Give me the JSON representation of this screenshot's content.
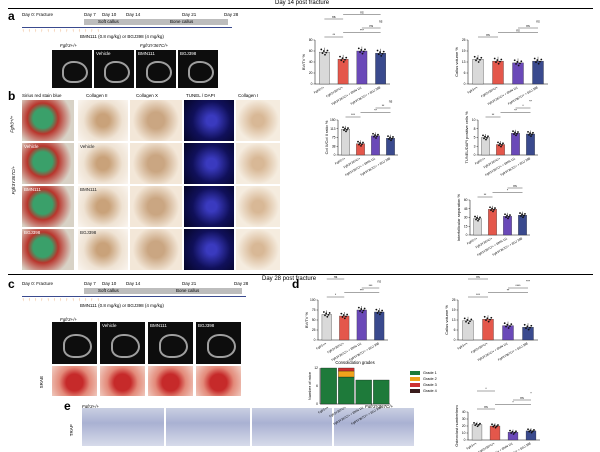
{
  "headers": {
    "d14": "Day 14 post fracture",
    "d28": "Day 28 post fracture"
  },
  "panels": [
    "a",
    "b",
    "c",
    "d",
    "e"
  ],
  "timeline14": {
    "labels": [
      "Day 0: Fracture",
      "Day 7",
      "Day 10",
      "Day 14"
    ],
    "phases": [
      "Soft callus",
      "Bone callus"
    ],
    "phase_days": [
      "Day 21",
      "Day 28"
    ],
    "drug": "BMN111 (0.8 mg/kg) or BGJ398 (4 mg/kg)"
  },
  "timeline28": {
    "labels": [
      "Day 0: Fracture",
      "Day 7",
      "Day 10",
      "Day 14"
    ],
    "phases": [
      "Soft callus",
      "Bone callus"
    ],
    "phase_days": [
      "Day 21",
      "Day 28"
    ],
    "drug": "BMN111 (0.8 mg/kg) or BGJ398 (4 mg/kg)"
  },
  "image_labels": {
    "ct14": [
      "Fgfr3+/+",
      "Vehicle",
      "BMN111",
      "BGJ398"
    ],
    "ct14_group": "Fgfr3Y367C/+",
    "ct28": [
      "Fgfr3+/+",
      "Vehicle",
      "BMN111",
      "BGJ398"
    ],
    "b_cols": [
      "Sirius red stain blue",
      "Collagen II",
      "Collagen X",
      "TUNEL / DAPI",
      "Collagen I"
    ],
    "b_rows": [
      "Fgfr3+/+",
      "Fgfr3Y367C/+"
    ],
    "b_row_tags": [
      "Vehicle",
      "BMN111",
      "BGJ398"
    ],
    "c_row2": "SRAB",
    "e_cols": [
      "Fgfr3+/+",
      "Vehicle",
      "BMN111",
      "BGJ398"
    ],
    "e_group": "Fgfr3Y367C/+",
    "e_row": "TRAP"
  },
  "groups": [
    "Fgfr3+/+",
    "Fgfr3Y367C/+",
    "Fgfr3Y367C/+ + BMN 111",
    "Fgfr3Y367C/+ + BGJ 398"
  ],
  "colors": {
    "wt": "#d9d9d9",
    "veh": "#e4574b",
    "bmn": "#6a49b8",
    "bgj": "#3a4a8e",
    "g1": "#1e7a3a",
    "g2": "#f0a31c",
    "g3": "#cc3030",
    "g4": "#3a1c1c"
  },
  "chart_data": [
    {
      "type": "bar",
      "ylabel": "BV/TV %",
      "ylim": [
        0,
        80
      ],
      "categories": [
        "Fgfr3+/+",
        "Fgfr3Y367C/+",
        "Fgfr3Y367C/+ + BMN 111",
        "Fgfr3Y367C/+ + BGJ 398"
      ],
      "values": [
        58,
        45,
        60,
        56
      ],
      "sig": [
        "**",
        "***",
        "ns",
        "ns",
        "ns",
        "ns"
      ]
    },
    {
      "type": "bar",
      "ylabel": "Callus volume %",
      "ylim": [
        0,
        25
      ],
      "categories": [
        "Fgfr3+/+",
        "Fgfr3Y367C/+",
        "Fgfr3Y367C/+ + BMN 111",
        "Fgfr3Y367C/+ + BGJ 398"
      ],
      "values": [
        14,
        13,
        12,
        13
      ],
      "sig": [
        "ns",
        "ns",
        "ns",
        "ns"
      ]
    },
    {
      "type": "bar",
      "ylabel": "Col X/Col II ratio %",
      "ylim": [
        0,
        150
      ],
      "categories": [
        "Fgfr3+/+",
        "Fgfr3Y367C/+",
        "Fgfr3Y367C/+ + BMN 111",
        "Fgfr3Y367C/+ + BGJ 398"
      ],
      "values": [
        110,
        48,
        82,
        72
      ],
      "sig": [
        "***",
        "**",
        "**",
        "ns"
      ]
    },
    {
      "type": "bar",
      "ylabel": "TUNEL/DAPI positive cells %",
      "ylim": [
        0,
        10
      ],
      "categories": [
        "Fgfr3+/+",
        "Fgfr3Y367C/+",
        "Fgfr3Y367C/+ + BMN 111",
        "Fgfr3Y367C/+ + BGJ 398"
      ],
      "values": [
        5,
        3,
        6.2,
        6
      ],
      "sig": [
        "**",
        "**",
        "*",
        "**"
      ]
    },
    {
      "type": "bar",
      "ylabel": "Interfollicular separation %",
      "ylim": [
        0,
        60
      ],
      "categories": [
        "Fgfr3+/+",
        "Fgfr3Y367C/+",
        "Fgfr3Y367C/+ + BMN 111",
        "Fgfr3Y367C/+ + BGJ 398"
      ],
      "values": [
        28,
        44,
        32,
        34
      ],
      "sig": [
        "**",
        "*",
        "ns"
      ]
    },
    {
      "type": "bar",
      "ylabel": "BV/TV %",
      "ylim": [
        0,
        100
      ],
      "categories": [
        "Fgfr3+/+",
        "Fgfr3Y367C/+",
        "Fgfr3Y367C/+ + BMN 111",
        "Fgfr3Y367C/+ + BGJ 398"
      ],
      "values": [
        64,
        60,
        75,
        70
      ],
      "sig": [
        "*",
        "***",
        "***",
        "ns",
        "ns"
      ]
    },
    {
      "type": "bar",
      "ylabel": "Callus volume %",
      "ylim": [
        0,
        25
      ],
      "categories": [
        "Fgfr3+/+",
        "Fgfr3Y367C/+",
        "Fgfr3Y367C/+ + BMN 111",
        "Fgfr3Y367C/+ + BGJ 398"
      ],
      "values": [
        12,
        13,
        9,
        8
      ],
      "sig": [
        "***",
        "**",
        "****",
        "***",
        "ns"
      ]
    },
    {
      "type": "bar",
      "title": "Consolidation grades",
      "ylabel": "Number of mice",
      "categories": [
        "Fgfr3+/+",
        "Fgfr3Y367C/+",
        "Fgfr3Y367C/+ + BMN 111",
        "Fgfr3Y367C/+ + BGJ 398"
      ],
      "series": [
        {
          "name": "Grade 1",
          "values": [
            12,
            9,
            8,
            8
          ]
        },
        {
          "name": "Grade 2",
          "values": [
            0,
            2,
            0,
            0
          ]
        },
        {
          "name": "Grade 3",
          "values": [
            0,
            1,
            0,
            0
          ]
        },
        {
          "name": "Grade 4",
          "values": [
            0,
            0,
            0,
            0
          ]
        }
      ]
    },
    {
      "type": "bar",
      "ylabel": "Osteoclast number/mm",
      "ylim": [
        0,
        40
      ],
      "categories": [
        "Fgfr3+/+",
        "Fgfr3Y367C/+",
        "Fgfr3Y367C/+ + BMN 111",
        "Fgfr3Y367C/+ + BGJ 398"
      ],
      "values": [
        22,
        20,
        11,
        13
      ],
      "sig": [
        "ns",
        "*",
        "ns",
        "*",
        "*"
      ]
    }
  ]
}
